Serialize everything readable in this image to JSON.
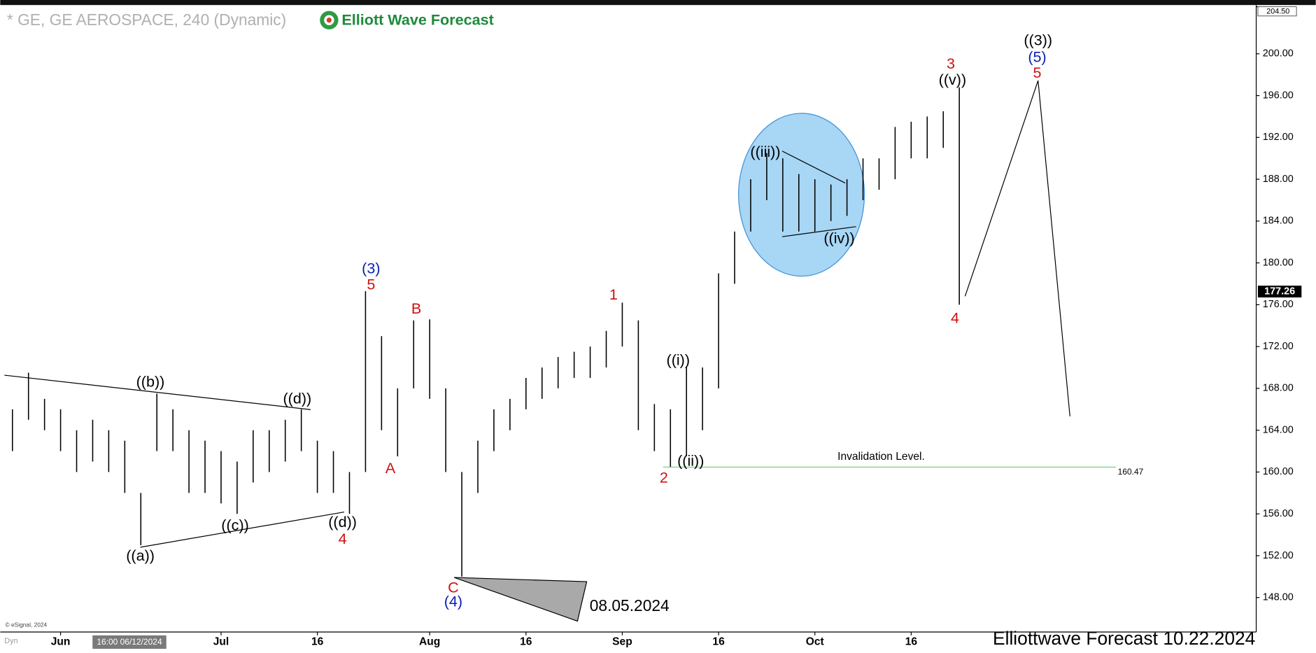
{
  "chart_data": {
    "type": "ohlc",
    "title": "* GE, GE AEROSPACE, 240 (Dynamic)",
    "logo": "Elliott Wave Forecast",
    "footer": "Elliottwave Forecast  10.22.2024",
    "source": "© eSignal, 2024",
    "mode": "Dyn",
    "cursor_label": "16:00 06/12/2024",
    "categories": [
      null,
      null,
      null,
      "Jun",
      null,
      null,
      null,
      null,
      null,
      null,
      null,
      null,
      null,
      "Jul",
      null,
      null,
      null,
      null,
      null,
      "16",
      null,
      null,
      null,
      null,
      null,
      null,
      "Aug",
      null,
      null,
      null,
      null,
      null,
      "16",
      null,
      null,
      null,
      null,
      null,
      "Sep",
      null,
      null,
      null,
      null,
      null,
      "16",
      null,
      null,
      null,
      null,
      null,
      "Oct",
      null,
      null,
      null,
      null,
      null,
      "16",
      null,
      null,
      null,
      null,
      null,
      null,
      null,
      null,
      null,
      null,
      null,
      null,
      null,
      null,
      null,
      null,
      null,
      null,
      null,
      null,
      null
    ],
    "high": [
      166,
      169.5,
      167,
      166,
      164,
      165,
      164,
      163,
      158,
      167.5,
      166,
      164,
      163,
      162,
      161,
      164,
      164,
      165,
      166,
      163,
      162,
      160,
      177.3,
      173,
      168,
      174.5,
      174.6,
      168,
      160,
      163,
      166,
      167,
      169,
      170,
      171,
      171.5,
      172,
      173.5,
      176.2,
      174.5,
      166.5,
      166,
      170,
      170,
      179,
      183,
      188,
      190.5,
      190,
      188.5,
      188,
      187.5,
      188,
      190,
      190,
      193,
      193.5,
      194,
      194.5,
      196.8,
      null,
      null,
      null,
      null,
      null,
      null,
      null,
      null,
      null,
      null,
      null,
      null,
      null,
      null,
      null,
      null,
      null,
      null
    ],
    "low": [
      162,
      165,
      164,
      162,
      160,
      161,
      160,
      158,
      153,
      162,
      162,
      158,
      158,
      157,
      156,
      159,
      160,
      161,
      162,
      158,
      158,
      156,
      160,
      164,
      161.5,
      168,
      167,
      160,
      150,
      158,
      162,
      164,
      166,
      167,
      168,
      169,
      169,
      170,
      172,
      164,
      162,
      160.5,
      161.5,
      164,
      168,
      178,
      183,
      186,
      183,
      183,
      183,
      184,
      184.5,
      186,
      187,
      188,
      190,
      190,
      191,
      176,
      null,
      null,
      null,
      null,
      null,
      null,
      null,
      null,
      null,
      null,
      null,
      null,
      null,
      null,
      null,
      null,
      null,
      null
    ],
    "color": "#000000",
    "ylim": [
      144.7,
      204.5
    ],
    "yticks": [
      {
        "value": 148,
        "label": "148.00"
      },
      {
        "value": 152,
        "label": "152.00"
      },
      {
        "value": 156,
        "label": "156.00"
      },
      {
        "value": 160,
        "label": "160.00"
      },
      {
        "value": 164,
        "label": "164.00"
      },
      {
        "value": 168,
        "label": "168.00"
      },
      {
        "value": 172,
        "label": "172.00"
      },
      {
        "value": 176,
        "label": "176.00"
      },
      {
        "value": 180,
        "label": "180.00"
      },
      {
        "value": 184,
        "label": "184.00"
      },
      {
        "value": 188,
        "label": "188.00"
      },
      {
        "value": 192,
        "label": "192.00"
      },
      {
        "value": 196,
        "label": "196.00"
      },
      {
        "value": 200,
        "label": "200.00"
      },
      {
        "value": 204.5,
        "label": "204.50"
      }
    ],
    "last_price": {
      "value": 177.26,
      "label": "177.26"
    },
    "invalidation": {
      "text": "Invalidation Level.",
      "value": 160.47,
      "color": "#7ddc7d"
    },
    "annotations": [
      {
        "text": "(3)",
        "color": "#0a1fb4"
      },
      {
        "text": "5",
        "color": "#d01010"
      },
      {
        "text": "B",
        "color": "#d01010"
      },
      {
        "text": "A",
        "color": "#d01010"
      },
      {
        "text": "C",
        "color": "#d01010"
      },
      {
        "text": "(4)",
        "color": "#0a1fb4"
      },
      {
        "text": "4",
        "color": "#d01010"
      },
      {
        "text": "((a))",
        "color": "#000000"
      },
      {
        "text": "((b))",
        "color": "#000000"
      },
      {
        "text": "((c))",
        "color": "#000000"
      },
      {
        "text": "((d))",
        "color": "#000000"
      },
      {
        "text": "((d))",
        "color": "#000000"
      },
      {
        "text": "1",
        "color": "#d01010"
      },
      {
        "text": "2",
        "color": "#d01010"
      },
      {
        "text": "((i))",
        "color": "#000000"
      },
      {
        "text": "((ii))",
        "color": "#000000"
      },
      {
        "text": "((iii))",
        "color": "#000000"
      },
      {
        "text": "((iv))",
        "color": "#000000"
      },
      {
        "text": "3",
        "color": "#d01010"
      },
      {
        "text": "((v))",
        "color": "#000000"
      },
      {
        "text": "4",
        "color": "#d01010"
      },
      {
        "text": "((3))",
        "color": "#000000"
      },
      {
        "text": "(5)",
        "color": "#0a1fb4"
      },
      {
        "text": "5",
        "color": "#d01010"
      },
      {
        "text": "08.05.2024",
        "color": "#000000"
      }
    ]
  }
}
